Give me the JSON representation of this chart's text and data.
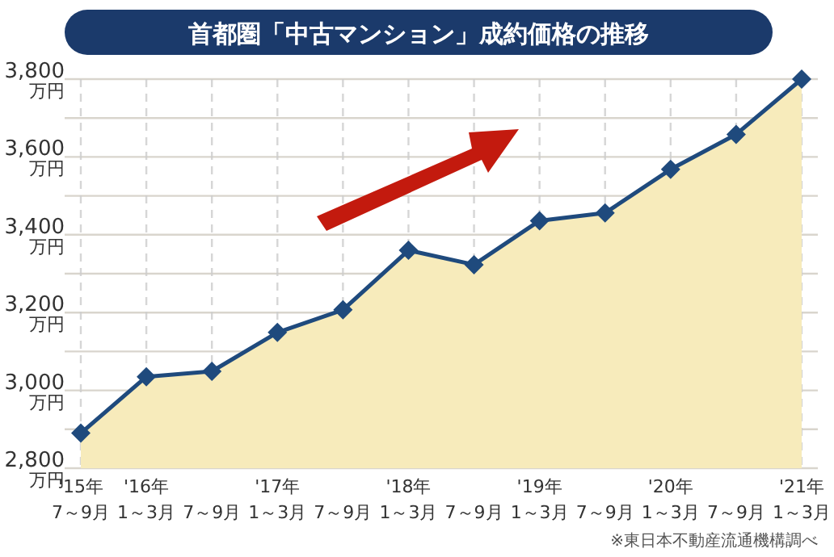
{
  "chart_data": {
    "type": "area",
    "title": "首都圏「中古マンション」成約価格の推移",
    "categories": [
      "'15年\n7～9月",
      "'16年\n1～3月",
      "7～9月",
      "'17年\n1～3月",
      "7～9月",
      "'18年\n1～3月",
      "7～9月",
      "'19年\n1～3月",
      "7～9月",
      "'20年\n1～3月",
      "7～9月",
      "'21年\n1～3月"
    ],
    "series": [
      {
        "color": "#1f4a7d",
        "values": [
          2890,
          3035,
          3049,
          3149,
          3207,
          3360,
          3323,
          3436,
          3456,
          3568,
          3658,
          3800
        ]
      }
    ],
    "ylim": [
      2800,
      3800
    ],
    "yticks": [
      {
        "value": 2800,
        "label": "2,800\n万円"
      },
      {
        "value": 2900,
        "label": null
      },
      {
        "value": 3000,
        "label": "3,000\n万円"
      },
      {
        "value": 3100,
        "label": null
      },
      {
        "value": 3200,
        "label": "3,200\n万円"
      },
      {
        "value": 3300,
        "label": null
      },
      {
        "value": 3400,
        "label": "3,400\n万円"
      },
      {
        "value": 3500,
        "label": null
      },
      {
        "value": 3600,
        "label": "3,600\n万円"
      },
      {
        "value": 3700,
        "label": null
      },
      {
        "value": 3800,
        "label": "3,800\n万円"
      }
    ],
    "grid": true,
    "marker": "diamond",
    "annotations": [
      "※東日本不動産流通機構調べ"
    ]
  }
}
